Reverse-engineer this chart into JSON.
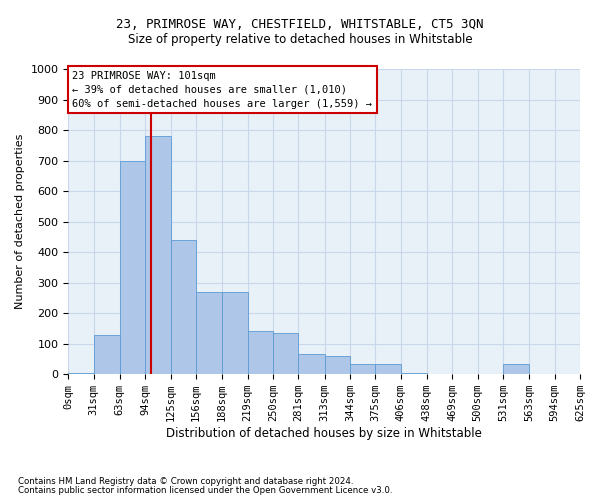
{
  "title": "23, PRIMROSE WAY, CHESTFIELD, WHITSTABLE, CT5 3QN",
  "subtitle": "Size of property relative to detached houses in Whitstable",
  "xlabel": "Distribution of detached houses by size in Whitstable",
  "ylabel": "Number of detached properties",
  "bin_labels": [
    "0sqm",
    "31sqm",
    "63sqm",
    "94sqm",
    "125sqm",
    "156sqm",
    "188sqm",
    "219sqm",
    "250sqm",
    "281sqm",
    "313sqm",
    "344sqm",
    "375sqm",
    "406sqm",
    "438sqm",
    "469sqm",
    "500sqm",
    "531sqm",
    "563sqm",
    "594sqm",
    "625sqm"
  ],
  "bar_values": [
    5,
    130,
    700,
    780,
    440,
    270,
    270,
    140,
    135,
    65,
    60,
    35,
    35,
    5,
    0,
    0,
    0,
    35,
    0,
    0,
    0
  ],
  "bar_color": "#aec6e8",
  "bar_edge_color": "#5b9bd5",
  "grid_color": "#c8d8ea",
  "background_color": "#e8f0f8",
  "vline_x": 101,
  "vline_color": "#cc0000",
  "annotation_text": "23 PRIMROSE WAY: 101sqm\n← 39% of detached houses are smaller (1,010)\n60% of semi-detached houses are larger (1,559) →",
  "annotation_box_color": "#ffffff",
  "annotation_box_edgecolor": "#cc0000",
  "footnote1": "Contains HM Land Registry data © Crown copyright and database right 2024.",
  "footnote2": "Contains public sector information licensed under the Open Government Licence v3.0.",
  "ylim": [
    0,
    1000
  ],
  "yticks": [
    0,
    100,
    200,
    300,
    400,
    500,
    600,
    700,
    800,
    900,
    1000
  ],
  "bin_edges": [
    0,
    31,
    63,
    94,
    125,
    156,
    188,
    219,
    250,
    281,
    313,
    344,
    375,
    406,
    438,
    469,
    500,
    531,
    563,
    594,
    625
  ],
  "title_fontsize": 9,
  "subtitle_fontsize": 8.5,
  "xlabel_fontsize": 8.5,
  "ylabel_fontsize": 8,
  "tick_fontsize": 7.5,
  "footnote_fontsize": 6.2,
  "annot_fontsize": 7.5
}
